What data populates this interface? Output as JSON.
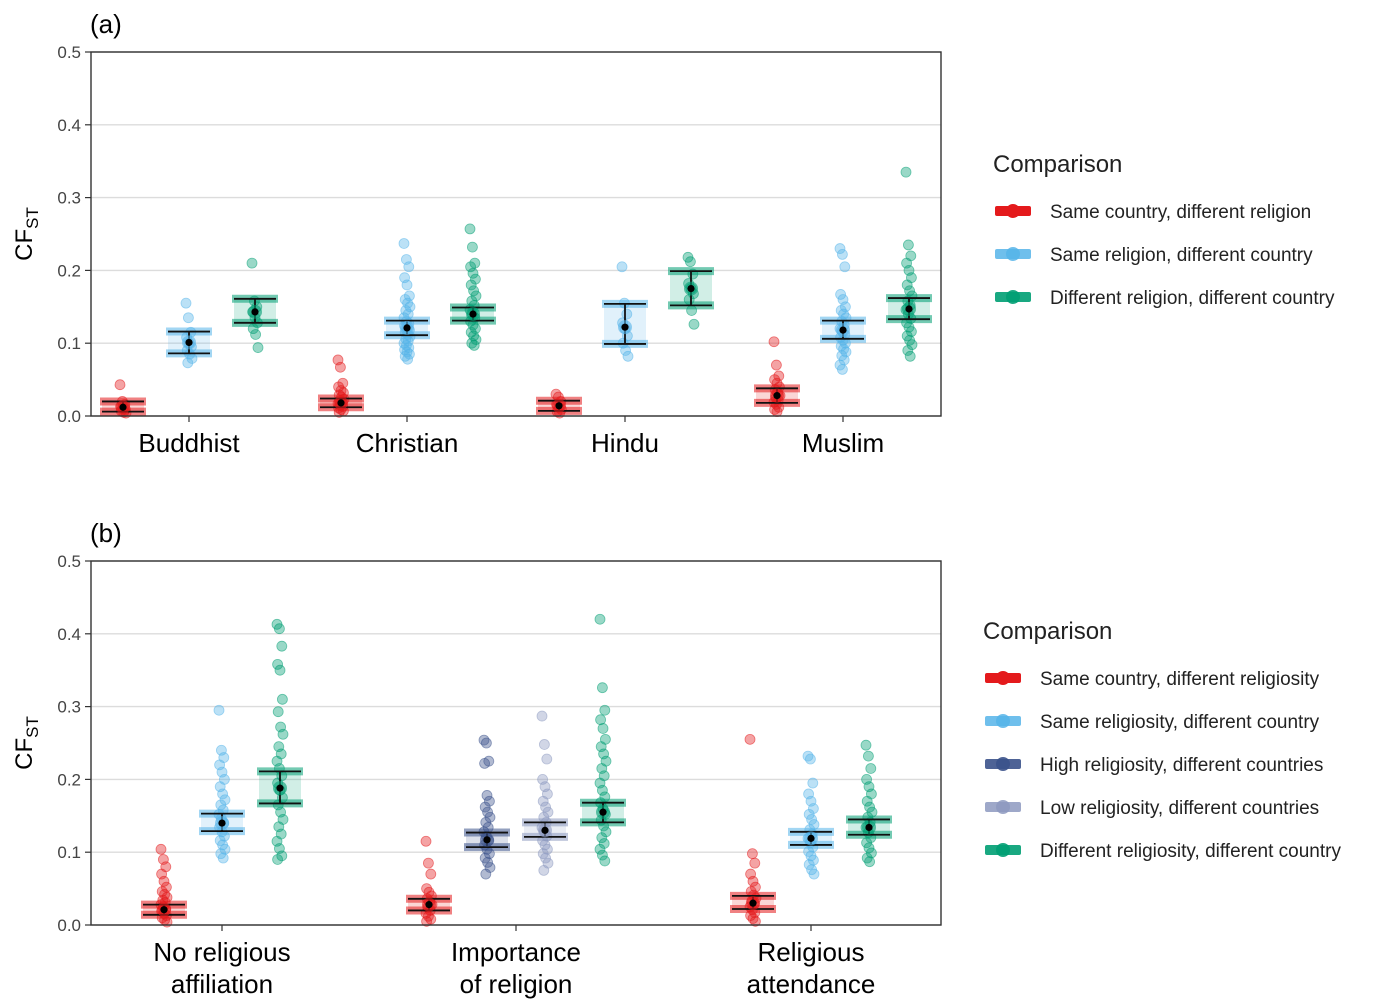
{
  "figure": {
    "panels": [
      {
        "tag": "(a)",
        "y_label": {
          "main": "CF",
          "sub": "ST"
        },
        "legend": {
          "title": "Comparison",
          "entries": [
            {
              "label": "Same country, different religion",
              "color": "#e41a1c",
              "alpha": 1.0
            },
            {
              "label": "Same religion, different country",
              "color": "#56b4e9",
              "alpha": 0.85
            },
            {
              "label": "Different religion, different country",
              "color": "#009e73",
              "alpha": 0.9
            }
          ]
        }
      },
      {
        "tag": "(b)",
        "y_label": {
          "main": "CF",
          "sub": "ST"
        },
        "legend": {
          "title": "Comparison",
          "entries": [
            {
              "label": "Same country, different religiosity",
              "color": "#e41a1c",
              "alpha": 1.0
            },
            {
              "label": "Same religiosity, different country",
              "color": "#56b4e9",
              "alpha": 0.85
            },
            {
              "label": "High religiosity, different countries",
              "color": "#3b528b",
              "alpha": 0.9
            },
            {
              "label": "Low religiosity, different countries",
              "color": "#8d99c0",
              "alpha": 0.85
            },
            {
              "label": "Different religiosity, different country",
              "color": "#009e73",
              "alpha": 0.9
            }
          ]
        }
      }
    ]
  },
  "chart_data": [
    {
      "type": "scatter",
      "title": "",
      "panel": "(a)",
      "ylabel": "CF_ST",
      "ylim": [
        0,
        0.5
      ],
      "yticks": [
        "0.0",
        "0.1",
        "0.2",
        "0.3",
        "0.4",
        "0.5"
      ],
      "grid": true,
      "legend_position": "right",
      "legend_title": "Comparison",
      "categories": [
        "Buddhist",
        "Christian",
        "Hindu",
        "Muslim"
      ],
      "series": [
        {
          "name": "Same country, different religion",
          "color": "#e41a1c",
          "groups": [
            {
              "category": "Buddhist",
              "mean": 0.012,
              "ci": [
                0.006,
                0.02
              ],
              "points": [
                0.043,
                0.02,
                0.016,
                0.013,
                0.011,
                0.009,
                0.007,
                0.005,
                0.004
              ]
            },
            {
              "category": "Christian",
              "mean": 0.018,
              "ci": [
                0.012,
                0.024
              ],
              "points": [
                0.077,
                0.067,
                0.045,
                0.04,
                0.035,
                0.032,
                0.029,
                0.026,
                0.023,
                0.021,
                0.019,
                0.017,
                0.015,
                0.013,
                0.011,
                0.009,
                0.007,
                0.005
              ]
            },
            {
              "category": "Hindu",
              "mean": 0.014,
              "ci": [
                0.007,
                0.021
              ],
              "points": [
                0.03,
                0.026,
                0.02,
                0.016,
                0.012,
                0.009,
                0.006,
                0.004
              ]
            },
            {
              "category": "Muslim",
              "mean": 0.028,
              "ci": [
                0.018,
                0.038
              ],
              "points": [
                0.102,
                0.07,
                0.055,
                0.05,
                0.045,
                0.04,
                0.036,
                0.032,
                0.028,
                0.025,
                0.022,
                0.019,
                0.016,
                0.012,
                0.009,
                0.006
              ]
            }
          ]
        },
        {
          "name": "Same religion, different country",
          "color": "#56b4e9",
          "groups": [
            {
              "category": "Buddhist",
              "mean": 0.101,
              "ci": [
                0.086,
                0.116
              ],
              "points": [
                0.155,
                0.135,
                0.115,
                0.108,
                0.1,
                0.095,
                0.09,
                0.085,
                0.079,
                0.073
              ]
            },
            {
              "category": "Christian",
              "mean": 0.121,
              "ci": [
                0.111,
                0.131
              ],
              "points": [
                0.237,
                0.215,
                0.205,
                0.19,
                0.18,
                0.165,
                0.16,
                0.155,
                0.15,
                0.145,
                0.14,
                0.135,
                0.13,
                0.127,
                0.124,
                0.121,
                0.118,
                0.115,
                0.112,
                0.109,
                0.106,
                0.103,
                0.1,
                0.097,
                0.094,
                0.091,
                0.088,
                0.085,
                0.082,
                0.078
              ]
            },
            {
              "category": "Hindu",
              "mean": 0.122,
              "ci": [
                0.099,
                0.154
              ],
              "points": [
                0.205,
                0.155,
                0.14,
                0.128,
                0.12,
                0.11,
                0.1,
                0.09,
                0.082
              ]
            },
            {
              "category": "Muslim",
              "mean": 0.118,
              "ci": [
                0.106,
                0.131
              ],
              "points": [
                0.23,
                0.222,
                0.205,
                0.167,
                0.16,
                0.15,
                0.145,
                0.14,
                0.135,
                0.13,
                0.125,
                0.12,
                0.116,
                0.112,
                0.108,
                0.104,
                0.1,
                0.096,
                0.092,
                0.088,
                0.083,
                0.077,
                0.07,
                0.064
              ]
            }
          ]
        },
        {
          "name": "Different religion, different country",
          "color": "#009e73",
          "groups": [
            {
              "category": "Buddhist",
              "mean": 0.143,
              "ci": [
                0.128,
                0.161
              ],
              "points": [
                0.21,
                0.158,
                0.15,
                0.143,
                0.135,
                0.128,
                0.12,
                0.112,
                0.094
              ]
            },
            {
              "category": "Christian",
              "mean": 0.14,
              "ci": [
                0.131,
                0.149
              ],
              "points": [
                0.257,
                0.232,
                0.21,
                0.205,
                0.196,
                0.188,
                0.18,
                0.172,
                0.165,
                0.158,
                0.152,
                0.146,
                0.14,
                0.135,
                0.13,
                0.125,
                0.12,
                0.115,
                0.11,
                0.105,
                0.1,
                0.097
              ]
            },
            {
              "category": "Hindu",
              "mean": 0.175,
              "ci": [
                0.152,
                0.199
              ],
              "points": [
                0.218,
                0.212,
                0.195,
                0.182,
                0.175,
                0.168,
                0.16,
                0.145,
                0.126
              ]
            },
            {
              "category": "Muslim",
              "mean": 0.147,
              "ci": [
                0.133,
                0.162
              ],
              "points": [
                0.335,
                0.235,
                0.22,
                0.21,
                0.2,
                0.19,
                0.18,
                0.172,
                0.165,
                0.158,
                0.152,
                0.146,
                0.14,
                0.134,
                0.128,
                0.122,
                0.116,
                0.11,
                0.104,
                0.098,
                0.09,
                0.082
              ]
            }
          ]
        }
      ]
    },
    {
      "type": "scatter",
      "title": "",
      "panel": "(b)",
      "ylabel": "CF_ST",
      "ylim": [
        0,
        0.5
      ],
      "yticks": [
        "0.0",
        "0.1",
        "0.2",
        "0.3",
        "0.4",
        "0.5"
      ],
      "grid": true,
      "legend_position": "right",
      "legend_title": "Comparison",
      "categories": [
        "No religious\naffiliation",
        "Importance\nof religion",
        "Religious\nattendance"
      ],
      "series": [
        {
          "name": "Same country, different religiosity",
          "color": "#e41a1c",
          "groups": [
            {
              "category": "No religious\naffiliation",
              "mean": 0.021,
              "ci": [
                0.014,
                0.028
              ],
              "points": [
                0.104,
                0.09,
                0.08,
                0.07,
                0.06,
                0.052,
                0.046,
                0.042,
                0.038,
                0.034,
                0.031,
                0.028,
                0.025,
                0.022,
                0.019,
                0.016,
                0.013,
                0.01,
                0.007,
                0.004
              ]
            },
            {
              "category": "Importance\nof religion",
              "mean": 0.028,
              "ci": [
                0.02,
                0.036
              ],
              "points": [
                0.115,
                0.085,
                0.07,
                0.05,
                0.045,
                0.04,
                0.036,
                0.032,
                0.028,
                0.024,
                0.02,
                0.016,
                0.012,
                0.008,
                0.005
              ]
            },
            {
              "category": "Religious\nattendance",
              "mean": 0.03,
              "ci": [
                0.022,
                0.04
              ],
              "points": [
                0.255,
                0.098,
                0.085,
                0.07,
                0.06,
                0.052,
                0.046,
                0.041,
                0.037,
                0.033,
                0.029,
                0.025,
                0.021,
                0.017,
                0.013,
                0.009,
                0.005
              ]
            }
          ]
        },
        {
          "name": "Same religiosity, different country",
          "color": "#56b4e9",
          "groups": [
            {
              "category": "No religious\naffiliation",
              "mean": 0.14,
              "ci": [
                0.129,
                0.153
              ],
              "points": [
                0.295,
                0.24,
                0.23,
                0.22,
                0.21,
                0.2,
                0.19,
                0.18,
                0.172,
                0.165,
                0.158,
                0.152,
                0.146,
                0.14,
                0.134,
                0.128,
                0.122,
                0.116,
                0.11,
                0.104,
                0.098,
                0.092
              ]
            },
            {
              "category": "Religious\nattendance",
              "mean": 0.119,
              "ci": [
                0.11,
                0.128
              ],
              "points": [
                0.232,
                0.228,
                0.195,
                0.18,
                0.17,
                0.16,
                0.152,
                0.145,
                0.138,
                0.131,
                0.125,
                0.119,
                0.113,
                0.107,
                0.101,
                0.095,
                0.089,
                0.083,
                0.076,
                0.07
              ]
            }
          ]
        },
        {
          "name": "High religiosity, different countries",
          "color": "#3b528b",
          "groups": [
            {
              "category": "Importance\nof religion",
              "mean": 0.117,
              "ci": [
                0.107,
                0.127
              ],
              "points": [
                0.254,
                0.25,
                0.225,
                0.222,
                0.178,
                0.17,
                0.162,
                0.155,
                0.148,
                0.141,
                0.134,
                0.128,
                0.122,
                0.116,
                0.11,
                0.104,
                0.098,
                0.092,
                0.086,
                0.079,
                0.07
              ]
            }
          ]
        },
        {
          "name": "Low religiosity, different countries",
          "color": "#8d99c0",
          "groups": [
            {
              "category": "Importance\nof religion",
              "mean": 0.13,
              "ci": [
                0.121,
                0.141
              ],
              "points": [
                0.287,
                0.248,
                0.228,
                0.2,
                0.19,
                0.18,
                0.17,
                0.162,
                0.155,
                0.148,
                0.141,
                0.134,
                0.128,
                0.122,
                0.116,
                0.11,
                0.104,
                0.098,
                0.092,
                0.085,
                0.075
              ]
            }
          ]
        },
        {
          "name": "Different religiosity, different country",
          "color": "#009e73",
          "groups": [
            {
              "category": "No religious\naffiliation",
              "mean": 0.188,
              "ci": [
                0.167,
                0.211
              ],
              "points": [
                0.413,
                0.407,
                0.383,
                0.358,
                0.35,
                0.31,
                0.293,
                0.272,
                0.262,
                0.245,
                0.235,
                0.225,
                0.215,
                0.205,
                0.195,
                0.185,
                0.175,
                0.165,
                0.155,
                0.145,
                0.135,
                0.125,
                0.115,
                0.105,
                0.095,
                0.09
              ]
            },
            {
              "category": "Importance\nof religion",
              "mean": 0.155,
              "ci": [
                0.141,
                0.168
              ],
              "points": [
                0.42,
                0.326,
                0.295,
                0.282,
                0.27,
                0.255,
                0.245,
                0.235,
                0.225,
                0.215,
                0.205,
                0.195,
                0.185,
                0.176,
                0.168,
                0.16,
                0.152,
                0.144,
                0.136,
                0.128,
                0.12,
                0.112,
                0.104,
                0.096,
                0.088
              ]
            },
            {
              "category": "Religious\nattendance",
              "mean": 0.134,
              "ci": [
                0.124,
                0.145
              ],
              "points": [
                0.247,
                0.232,
                0.215,
                0.2,
                0.19,
                0.18,
                0.17,
                0.162,
                0.155,
                0.148,
                0.141,
                0.134,
                0.127,
                0.12,
                0.113,
                0.106,
                0.099,
                0.092,
                0.087
              ]
            }
          ]
        }
      ]
    }
  ]
}
